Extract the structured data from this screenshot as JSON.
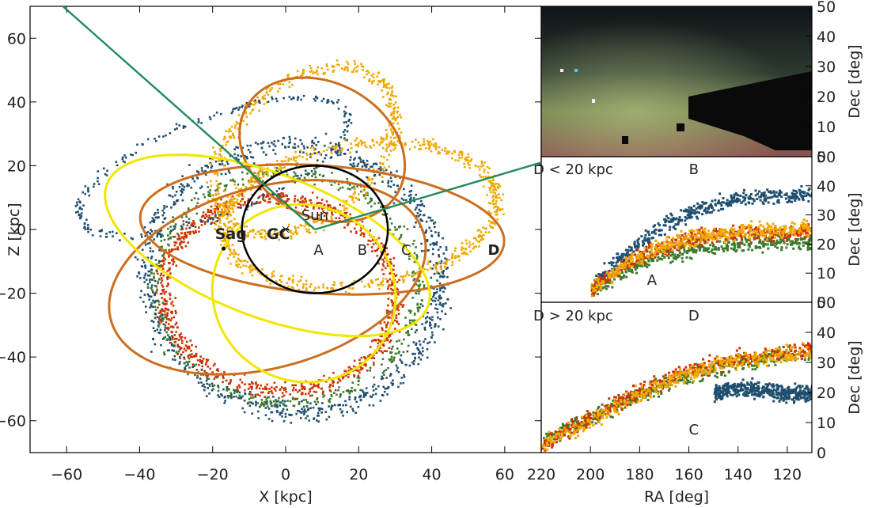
{
  "chart_data": [
    {
      "type": "scatter",
      "xlabel": "X [kpc]",
      "ylabel": "Z [kpc]",
      "xlim": [
        -70,
        70
      ],
      "ylim": [
        -70,
        70
      ],
      "xticks": [
        -60,
        -40,
        -20,
        0,
        20,
        40,
        60
      ],
      "yticks": [
        60,
        40,
        20,
        0,
        -20,
        -40,
        -60
      ],
      "tick_labels_x": [
        "−60",
        "−40",
        "−20",
        "0",
        "20",
        "40",
        "60"
      ],
      "tick_labels_y": [
        "60",
        "40",
        "20",
        "0",
        "−20",
        "−40",
        "−60"
      ],
      "grid": false,
      "annotations": [
        {
          "text": "Sun",
          "x": 8,
          "y": 3
        },
        {
          "text": "GC",
          "x": -2,
          "y": -3
        },
        {
          "text": "Sag",
          "x": -15,
          "y": -3
        },
        {
          "text": "A",
          "x": 9,
          "y": -8
        },
        {
          "text": "B",
          "x": 21,
          "y": -8
        },
        {
          "text": "C",
          "x": 33,
          "y": -8
        },
        {
          "text": "D",
          "x": 57,
          "y": -8
        }
      ],
      "markers": [
        {
          "name": "GC",
          "x": 0,
          "y": 0,
          "symbol": "x"
        },
        {
          "name": "Sag",
          "x": -17,
          "y": -6,
          "symbol": "dot"
        }
      ],
      "circle": {
        "center": [
          8,
          0
        ],
        "radius": 20,
        "color": "#000000"
      },
      "lines": [
        {
          "color": "#1f8a5a",
          "points": [
            [
              8,
              0
            ],
            [
              -61,
              70
            ]
          ]
        },
        {
          "color": "#1f8a5a",
          "points": [
            [
              8,
              0
            ],
            [
              70,
              21
            ]
          ]
        }
      ],
      "series": [
        {
          "color": "#1f4e6e",
          "center": [
            2,
            -15
          ],
          "rx": 40,
          "ry": 42,
          "rot": 15,
          "width": 10,
          "n": 900
        },
        {
          "color": "#3e7a2b",
          "center": [
            0,
            -18
          ],
          "rx": 36,
          "ry": 36,
          "rot": -10,
          "width": 6,
          "n": 500
        },
        {
          "color": "#cc3300",
          "center": [
            -2,
            -20
          ],
          "rx": 32,
          "ry": 30,
          "rot": -20,
          "width": 7,
          "n": 900
        },
        {
          "color": "#f0a800",
          "center": [
            20,
            5
          ],
          "rx": 38,
          "ry": 22,
          "rot": 10,
          "width": 6,
          "n": 700
        },
        {
          "color": "#f0a800",
          "center": [
            5,
            25
          ],
          "rx": 20,
          "ry": 30,
          "rot": -40,
          "width": 6,
          "n": 500
        },
        {
          "color": "#1f4e6e",
          "center": [
            -20,
            20
          ],
          "rx": 40,
          "ry": 15,
          "rot": 25,
          "width": 4,
          "n": 250
        }
      ],
      "orbits": [
        {
          "color": "#cc6e1e",
          "center": [
            10,
            0
          ],
          "rx": 50,
          "ry": 20,
          "rot": -5
        },
        {
          "color": "#cc6e1e",
          "center": [
            -5,
            -15
          ],
          "rx": 45,
          "ry": 28,
          "rot": 20
        },
        {
          "color": "#cc6e1e",
          "center": [
            10,
            25
          ],
          "rx": 25,
          "ry": 20,
          "rot": -45
        },
        {
          "color": "#f2e600",
          "center": [
            -5,
            -5
          ],
          "rx": 48,
          "ry": 22,
          "rot": -25
        },
        {
          "color": "#f2e600",
          "center": [
            5,
            -20
          ],
          "rx": 25,
          "ry": 28,
          "rot": 10
        }
      ]
    },
    {
      "type": "image",
      "ylabel": "Dec [deg]",
      "ylim": [
        0,
        50
      ],
      "yticks": [
        50,
        40,
        30,
        20,
        10,
        0
      ],
      "tick_labels_y": [
        "50",
        "40",
        "30",
        "20",
        "10",
        "0"
      ]
    },
    {
      "type": "scatter",
      "ylabel": "Dec [deg]",
      "xlim": [
        220,
        110
      ],
      "ylim": [
        0,
        50
      ],
      "yticks": [
        50,
        40,
        30,
        20,
        10,
        0
      ],
      "tick_labels_y": [
        "50",
        "40",
        "30",
        "20",
        "10",
        "0"
      ],
      "annotations": [
        {
          "text": "D < 20 kpc",
          "x": 207,
          "y": 44
        },
        {
          "text": "B",
          "x": 158,
          "y": 44
        },
        {
          "text": "A",
          "x": 175,
          "y": 6
        }
      ],
      "series": [
        {
          "color": "#1f4e6e",
          "x": [
            200,
            185,
            170,
            155,
            140,
            125,
            110
          ],
          "y": [
            6,
            18,
            27,
            33,
            36,
            37,
            38
          ]
        },
        {
          "color": "#3e7a2b",
          "x": [
            200,
            185,
            170,
            155,
            140,
            125,
            110
          ],
          "y": [
            4,
            12,
            17,
            19,
            20,
            21,
            21
          ]
        },
        {
          "color": "#cc3300",
          "x": [
            200,
            185,
            170,
            155,
            140,
            125,
            110
          ],
          "y": [
            5,
            14,
            20,
            23,
            24,
            24,
            25
          ]
        },
        {
          "color": "#f0a800",
          "x": [
            200,
            185,
            170,
            155,
            140,
            125,
            110
          ],
          "y": [
            5,
            14,
            20,
            23,
            25,
            25,
            26
          ]
        }
      ]
    },
    {
      "type": "scatter",
      "xlabel": "RA [deg]",
      "ylabel": "Dec [deg]",
      "xlim": [
        220,
        110
      ],
      "ylim": [
        0,
        50
      ],
      "xticks": [
        220,
        200,
        180,
        160,
        140,
        120
      ],
      "yticks": [
        50,
        40,
        30,
        20,
        10,
        0
      ],
      "tick_labels_x": [
        "220",
        "200",
        "180",
        "160",
        "140",
        "120"
      ],
      "tick_labels_y": [
        "50",
        "40",
        "30",
        "20",
        "10",
        "0"
      ],
      "annotations": [
        {
          "text": "D > 20 kpc",
          "x": 207,
          "y": 44
        },
        {
          "text": "D",
          "x": 158,
          "y": 44
        },
        {
          "text": "C",
          "x": 158,
          "y": 6
        }
      ],
      "series": [
        {
          "color": "#1f4e6e",
          "x": [
            150,
            140,
            130,
            120,
            110
          ],
          "y": [
            20,
            22,
            21,
            20,
            20
          ]
        },
        {
          "color": "#3e7a2b",
          "x": [
            220,
            200,
            180,
            160,
            140,
            120,
            110
          ],
          "y": [
            4,
            12,
            20,
            26,
            30,
            33,
            33
          ]
        },
        {
          "color": "#cc3300",
          "x": [
            220,
            200,
            180,
            160,
            140,
            120,
            110
          ],
          "y": [
            3,
            12,
            21,
            28,
            32,
            34,
            35
          ]
        },
        {
          "color": "#f0a800",
          "x": [
            220,
            200,
            180,
            160,
            140,
            120,
            110
          ],
          "y": [
            3,
            11,
            20,
            27,
            31,
            33,
            34
          ]
        }
      ]
    }
  ]
}
